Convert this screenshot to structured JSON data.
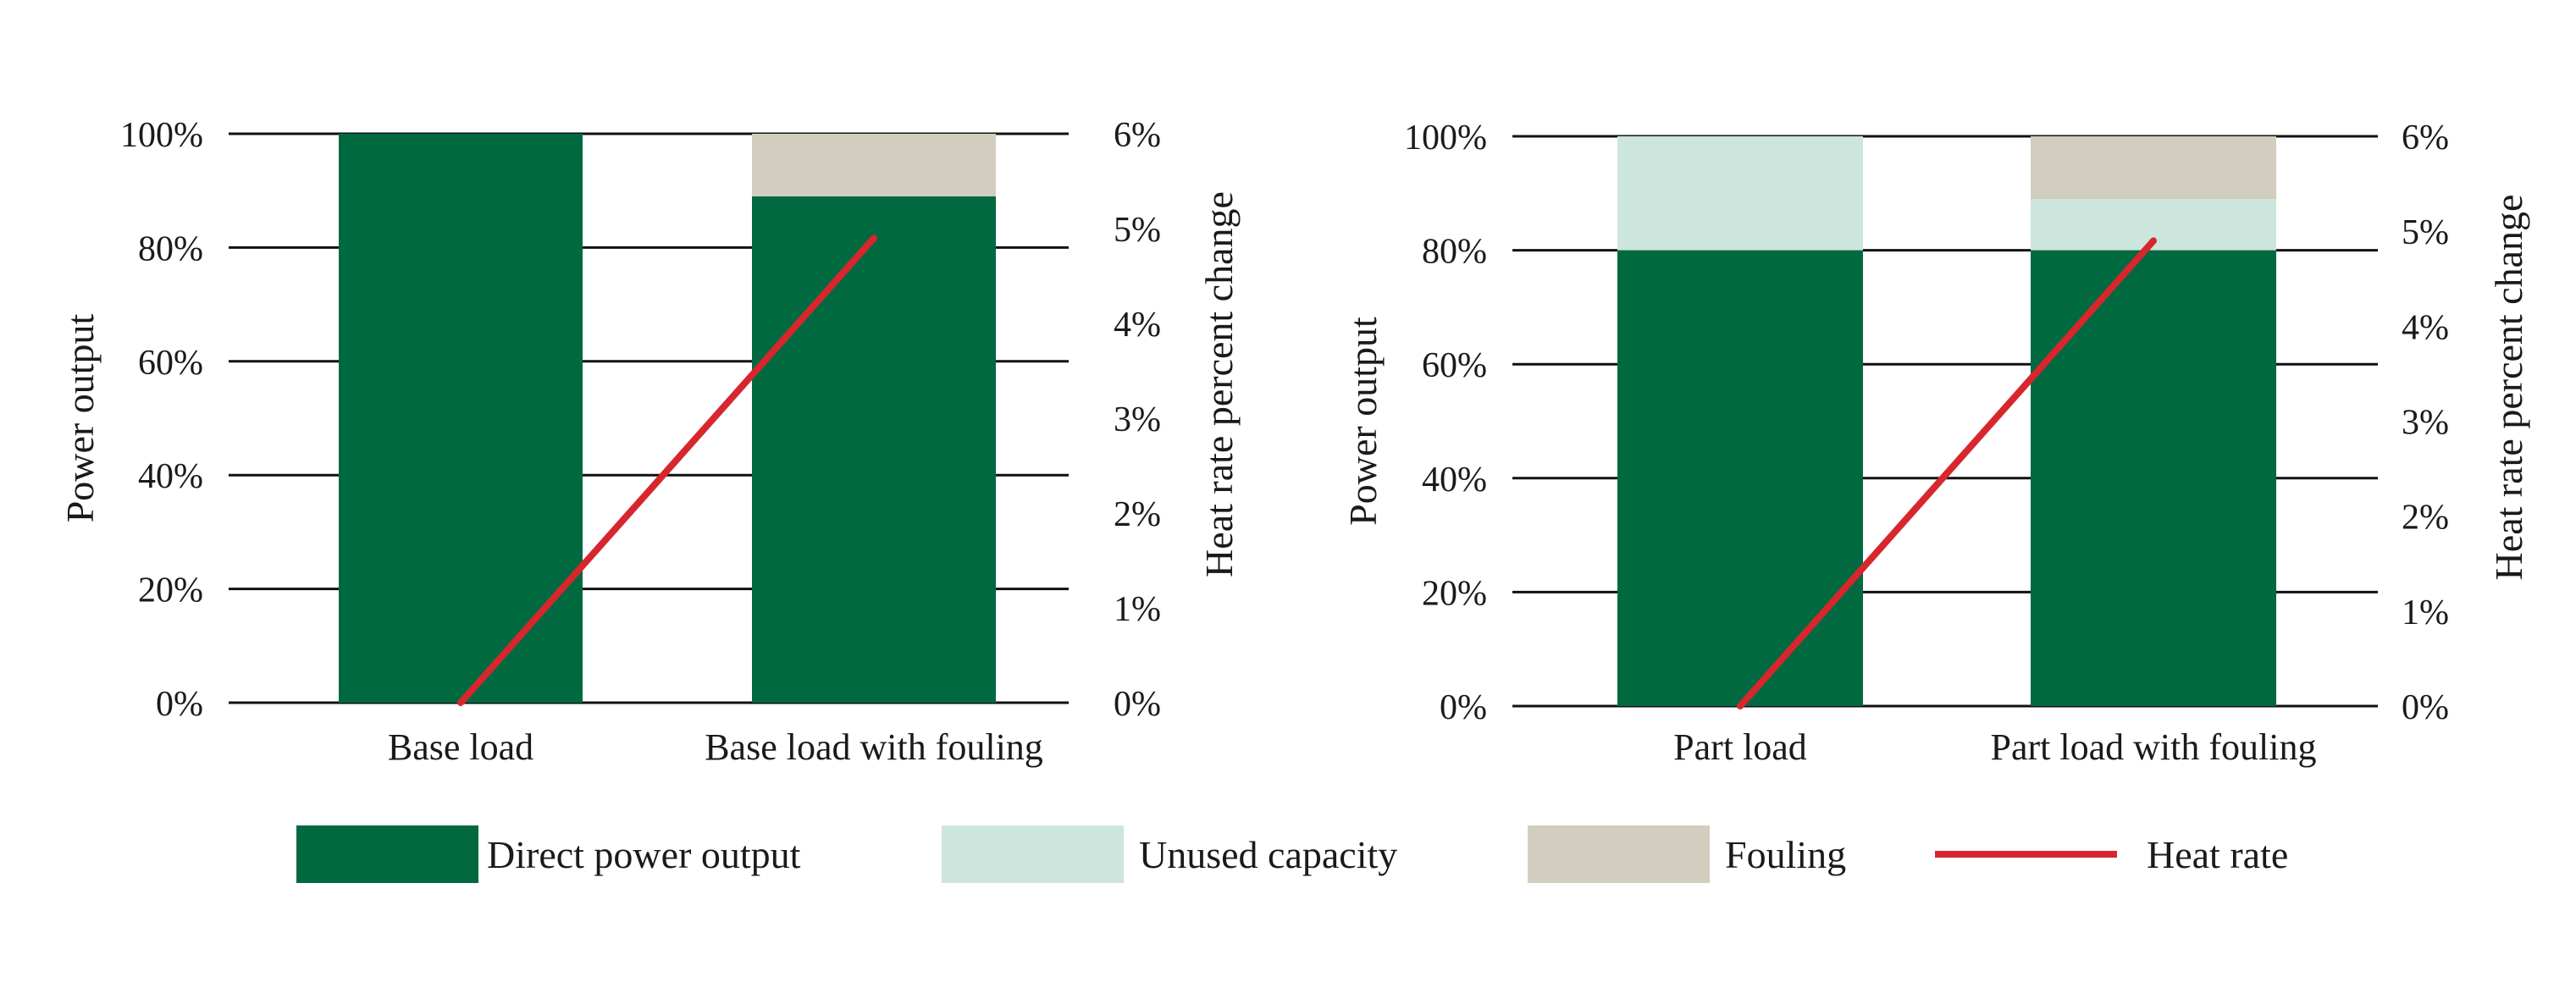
{
  "colors": {
    "direct": "#006940",
    "unused": "#cde6dd",
    "fouling": "#d3cdbf",
    "heat_rate": "#d7262e",
    "grid": "#111111"
  },
  "legend": {
    "items": [
      {
        "key": "direct",
        "label": "Direct power output",
        "kind": "box"
      },
      {
        "key": "unused",
        "label": "Unused capacity",
        "kind": "box"
      },
      {
        "key": "fouling",
        "label": "Fouling",
        "kind": "box"
      },
      {
        "key": "heat_rate",
        "label": "Heat rate",
        "kind": "line"
      }
    ]
  },
  "chart_data": [
    {
      "type": "bar",
      "stacked": true,
      "categories": [
        "Base load",
        "Base load with fouling"
      ],
      "series": [
        {
          "name": "Direct power output",
          "key": "direct",
          "values": [
            100,
            89
          ]
        },
        {
          "name": "Unused capacity",
          "key": "unused",
          "values": [
            0,
            0
          ]
        },
        {
          "name": "Fouling",
          "key": "fouling",
          "values": [
            0,
            11
          ]
        }
      ],
      "line": {
        "name": "Heat rate",
        "key": "heat_rate",
        "axis": "right",
        "values": [
          0,
          4.9
        ]
      },
      "ylabel": "Power output",
      "ylabel_right": "Heat rate percent change",
      "ylim": [
        0,
        100
      ],
      "ylim_right": [
        0,
        6
      ],
      "yticks": [
        "0%",
        "20%",
        "40%",
        "60%",
        "80%",
        "100%"
      ],
      "yticks_right": [
        "0%",
        "1%",
        "2%",
        "3%",
        "4%",
        "5%",
        "6%"
      ],
      "grid": true
    },
    {
      "type": "bar",
      "stacked": true,
      "categories": [
        "Part load",
        "Part load with fouling"
      ],
      "series": [
        {
          "name": "Direct power output",
          "key": "direct",
          "values": [
            80,
            80
          ]
        },
        {
          "name": "Unused capacity",
          "key": "unused",
          "values": [
            20,
            9
          ]
        },
        {
          "name": "Fouling",
          "key": "fouling",
          "values": [
            0,
            11
          ]
        }
      ],
      "line": {
        "name": "Heat rate",
        "key": "heat_rate",
        "axis": "right",
        "values": [
          0,
          4.9
        ]
      },
      "ylabel": "Power output",
      "ylabel_right": "Heat rate percent change",
      "ylim": [
        0,
        100
      ],
      "ylim_right": [
        0,
        6
      ],
      "yticks": [
        "0%",
        "20%",
        "40%",
        "60%",
        "80%",
        "100%"
      ],
      "yticks_right": [
        "0%",
        "1%",
        "2%",
        "3%",
        "4%",
        "5%",
        "6%"
      ],
      "grid": true
    }
  ]
}
